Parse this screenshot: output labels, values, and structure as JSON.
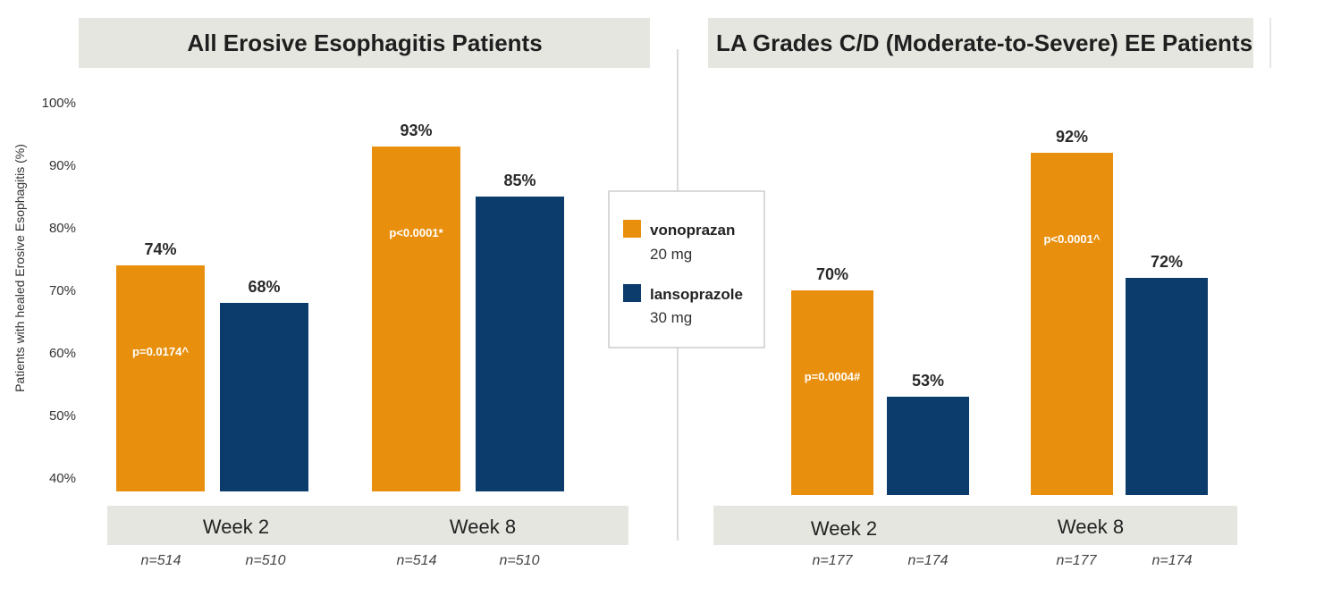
{
  "colors": {
    "vonoprazan": "#E8900E",
    "lansoprazole": "#0B3C6B",
    "header_band": "#E6E6E0"
  },
  "legend": {
    "items": [
      {
        "name": "vonoprazan",
        "dose": "20 mg",
        "color": "#E8900E"
      },
      {
        "name": "lansoprazole",
        "dose": "30 mg",
        "color": "#0B3C6B"
      }
    ]
  },
  "chart_data": [
    {
      "type": "bar",
      "title": "All Erosive Esophagitis Patients",
      "ylabel": "Patients with healed Erosive Esophagitis (%)",
      "ylim": [
        40,
        100
      ],
      "yticks": [
        "100%",
        "90%",
        "80%",
        "70%",
        "60%",
        "50%",
        "40%"
      ],
      "categories": [
        "Week 2",
        "Week 8"
      ],
      "series": [
        {
          "name": "vonoprazan",
          "values": [
            74,
            93
          ],
          "labels": [
            "74%",
            "93%"
          ]
        },
        {
          "name": "lansoprazole",
          "values": [
            68,
            85
          ],
          "labels": [
            "68%",
            "85%"
          ]
        }
      ],
      "p_values": [
        "p=0.0174^",
        "p<0.0001*"
      ],
      "n": [
        [
          "n=514",
          "n=510"
        ],
        [
          "n=514",
          "n=510"
        ]
      ]
    },
    {
      "type": "bar",
      "title": "LA Grades C/D (Moderate-to-Severe) EE Patients",
      "ylim": [
        40,
        100
      ],
      "categories": [
        "Week 2",
        "Week 8"
      ],
      "series": [
        {
          "name": "vonoprazan",
          "values": [
            70,
            92
          ],
          "labels": [
            "70%",
            "92%"
          ]
        },
        {
          "name": "lansoprazole",
          "values": [
            53,
            72
          ],
          "labels": [
            "53%",
            "72%"
          ]
        }
      ],
      "p_values": [
        "p=0.0004#",
        "p<0.0001^"
      ],
      "n": [
        [
          "n=177",
          "n=174"
        ],
        [
          "n=177",
          "n=174"
        ]
      ]
    }
  ]
}
